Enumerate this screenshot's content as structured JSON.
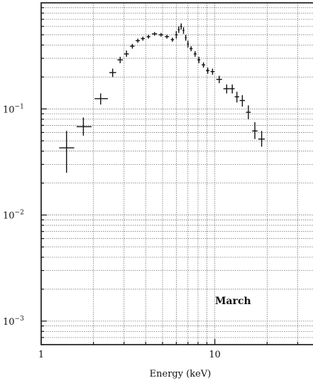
{
  "chart_data": {
    "type": "scatter",
    "xlabel": "Energy (keV)",
    "ylabel": "",
    "x_scale": "log",
    "y_scale": "log",
    "xlim": [
      1,
      40
    ],
    "ylim": [
      0.0006,
      1.0
    ],
    "x_ticks": [
      {
        "value": 1,
        "label": "1"
      },
      {
        "value": 10,
        "label": "10"
      }
    ],
    "y_ticks": [
      {
        "value": 0.001,
        "base": "10",
        "exp": "−3"
      },
      {
        "value": 0.01,
        "base": "10",
        "exp": "−2"
      },
      {
        "value": 0.1,
        "base": "10",
        "exp": "−1"
      }
    ],
    "grid": true,
    "annotation": "March",
    "series": [
      {
        "points": [
          {
            "x": 1.4,
            "y": 0.043,
            "xlo": 1.27,
            "xhi": 1.55,
            "ylo": 0.025,
            "yhi": 0.062
          },
          {
            "x": 1.75,
            "y": 0.068,
            "xlo": 1.6,
            "xhi": 1.95,
            "ylo": 0.056,
            "yhi": 0.083
          },
          {
            "x": 2.2,
            "y": 0.125,
            "xlo": 2.03,
            "xhi": 2.42,
            "ylo": 0.11,
            "yhi": 0.14
          },
          {
            "x": 2.58,
            "y": 0.22,
            "xlo": 2.47,
            "xhi": 2.7,
            "ylo": 0.2,
            "yhi": 0.24
          },
          {
            "x": 2.85,
            "y": 0.29,
            "xlo": 2.75,
            "xhi": 2.95,
            "ylo": 0.27,
            "yhi": 0.31
          },
          {
            "x": 3.1,
            "y": 0.33,
            "xlo": 3.0,
            "xhi": 3.2,
            "ylo": 0.31,
            "yhi": 0.355
          },
          {
            "x": 3.35,
            "y": 0.39,
            "xlo": 3.25,
            "xhi": 3.45,
            "ylo": 0.37,
            "yhi": 0.41
          },
          {
            "x": 3.6,
            "y": 0.44,
            "xlo": 3.5,
            "xhi": 3.7,
            "ylo": 0.42,
            "yhi": 0.46
          },
          {
            "x": 3.85,
            "y": 0.46,
            "xlo": 3.75,
            "xhi": 3.95,
            "ylo": 0.44,
            "yhi": 0.48
          },
          {
            "x": 4.15,
            "y": 0.48,
            "xlo": 4.05,
            "xhi": 4.25,
            "ylo": 0.46,
            "yhi": 0.5
          },
          {
            "x": 4.5,
            "y": 0.51,
            "xlo": 4.35,
            "xhi": 4.65,
            "ylo": 0.49,
            "yhi": 0.53
          },
          {
            "x": 4.9,
            "y": 0.5,
            "xlo": 4.75,
            "xhi": 5.05,
            "ylo": 0.48,
            "yhi": 0.52
          },
          {
            "x": 5.3,
            "y": 0.48,
            "xlo": 5.15,
            "xhi": 5.45,
            "ylo": 0.46,
            "yhi": 0.5
          },
          {
            "x": 5.7,
            "y": 0.45,
            "xlo": 5.58,
            "xhi": 5.82,
            "ylo": 0.43,
            "yhi": 0.47
          },
          {
            "x": 6.0,
            "y": 0.5,
            "xlo": 5.9,
            "xhi": 6.1,
            "ylo": 0.46,
            "yhi": 0.54
          },
          {
            "x": 6.2,
            "y": 0.56,
            "xlo": 6.12,
            "xhi": 6.28,
            "ylo": 0.52,
            "yhi": 0.6
          },
          {
            "x": 6.4,
            "y": 0.6,
            "xlo": 6.32,
            "xhi": 6.48,
            "ylo": 0.56,
            "yhi": 0.64
          },
          {
            "x": 6.6,
            "y": 0.55,
            "xlo": 6.52,
            "xhi": 6.68,
            "ylo": 0.51,
            "yhi": 0.59
          },
          {
            "x": 6.8,
            "y": 0.47,
            "xlo": 6.72,
            "xhi": 6.88,
            "ylo": 0.44,
            "yhi": 0.5
          },
          {
            "x": 7.0,
            "y": 0.41,
            "xlo": 6.92,
            "xhi": 7.08,
            "ylo": 0.38,
            "yhi": 0.44
          },
          {
            "x": 7.3,
            "y": 0.37,
            "xlo": 7.15,
            "xhi": 7.45,
            "ylo": 0.35,
            "yhi": 0.39
          },
          {
            "x": 7.7,
            "y": 0.33,
            "xlo": 7.55,
            "xhi": 7.85,
            "ylo": 0.31,
            "yhi": 0.35
          },
          {
            "x": 8.1,
            "y": 0.29,
            "xlo": 7.95,
            "xhi": 8.25,
            "ylo": 0.27,
            "yhi": 0.31
          },
          {
            "x": 8.6,
            "y": 0.26,
            "xlo": 8.4,
            "xhi": 8.8,
            "ylo": 0.245,
            "yhi": 0.275
          },
          {
            "x": 9.1,
            "y": 0.23,
            "xlo": 8.9,
            "xhi": 9.3,
            "ylo": 0.215,
            "yhi": 0.245
          },
          {
            "x": 9.7,
            "y": 0.225,
            "xlo": 9.45,
            "xhi": 9.95,
            "ylo": 0.21,
            "yhi": 0.24
          },
          {
            "x": 10.6,
            "y": 0.19,
            "xlo": 10.2,
            "xhi": 11.0,
            "ylo": 0.175,
            "yhi": 0.205
          },
          {
            "x": 11.7,
            "y": 0.155,
            "xlo": 11.2,
            "xhi": 12.2,
            "ylo": 0.14,
            "yhi": 0.17
          },
          {
            "x": 12.6,
            "y": 0.155,
            "xlo": 12.2,
            "xhi": 13.0,
            "ylo": 0.14,
            "yhi": 0.17
          },
          {
            "x": 13.4,
            "y": 0.13,
            "xlo": 13.0,
            "xhi": 13.8,
            "ylo": 0.115,
            "yhi": 0.145
          },
          {
            "x": 14.4,
            "y": 0.12,
            "xlo": 13.9,
            "xhi": 14.9,
            "ylo": 0.105,
            "yhi": 0.135
          },
          {
            "x": 15.6,
            "y": 0.093,
            "xlo": 15.1,
            "xhi": 16.1,
            "ylo": 0.08,
            "yhi": 0.108
          },
          {
            "x": 17.0,
            "y": 0.062,
            "xlo": 16.4,
            "xhi": 17.6,
            "ylo": 0.052,
            "yhi": 0.075
          },
          {
            "x": 18.6,
            "y": 0.052,
            "xlo": 17.8,
            "xhi": 19.4,
            "ylo": 0.044,
            "yhi": 0.062
          }
        ]
      }
    ]
  }
}
